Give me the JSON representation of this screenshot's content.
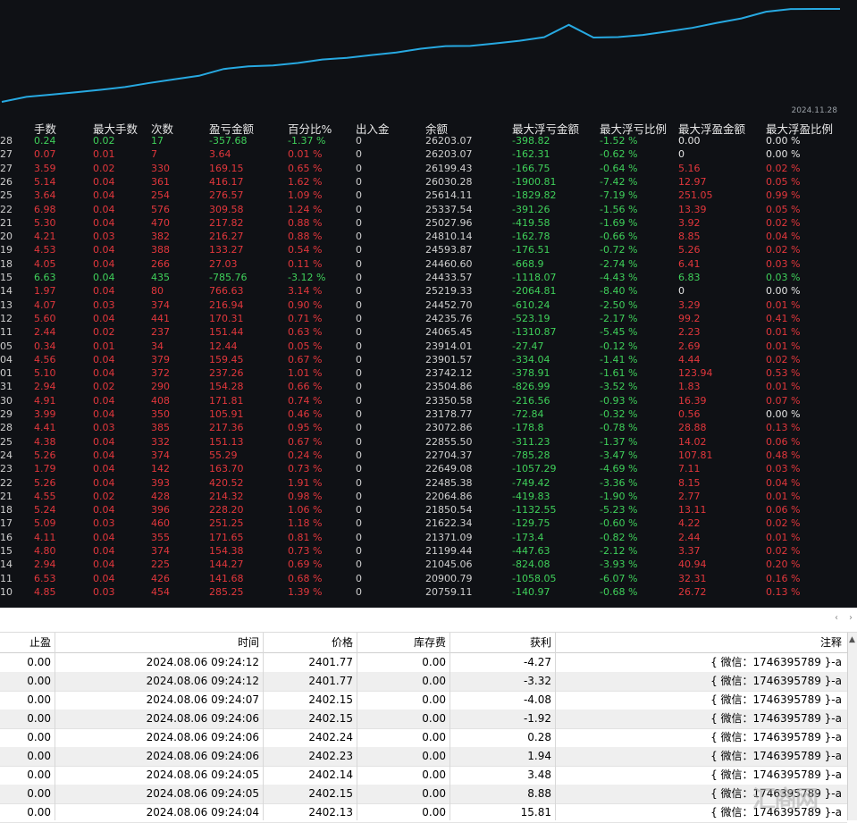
{
  "chart": {
    "date_label": "2024.11.28",
    "line_color": "#27a9e1",
    "balance_curve": [
      20450,
      20760,
      20900,
      21045,
      21199,
      21371,
      21622,
      21850,
      22065,
      22485,
      22649,
      22705,
      22856,
      23073,
      23179,
      23351,
      23505,
      23742,
      23902,
      23914,
      24065,
      24236,
      24453,
      25219,
      24434,
      24461,
      24594,
      24810,
      25028,
      25338,
      25614,
      26030,
      26199,
      26203,
      26203
    ]
  },
  "stats": {
    "headers": [
      "手数",
      "最大手数",
      "次数",
      "盈亏金额",
      "百分比%",
      "出入金",
      "余额",
      "最大浮亏金额",
      "最大浮亏比例",
      "最大浮盈金额",
      "最大浮盈比例"
    ],
    "rows": [
      {
        "id": "28",
        "lots": "0.24",
        "max_lots": "0.02",
        "count": "17",
        "pnl": "-357.68",
        "pct": "-1.37 %",
        "dep": "0",
        "bal": "26203.07",
        "maxl": "-398.82",
        "maxlp": "-1.52 %",
        "maxp": "0.00",
        "maxpp": "0.00 %",
        "tone": "green"
      },
      {
        "id": "27",
        "lots": "0.07",
        "max_lots": "0.01",
        "count": "7",
        "pnl": "3.64",
        "pct": "0.01 %",
        "dep": "0",
        "bal": "26203.07",
        "maxl": "-162.31",
        "maxlp": "-0.62 %",
        "maxp": "0",
        "maxpp": "0.00 %",
        "tone": "red"
      },
      {
        "id": "27",
        "lots": "3.59",
        "max_lots": "0.02",
        "count": "330",
        "pnl": "169.15",
        "pct": "0.65 %",
        "dep": "0",
        "bal": "26199.43",
        "maxl": "-166.75",
        "maxlp": "-0.64 %",
        "maxp": "5.16",
        "maxpp": "0.02 %",
        "tone": "red"
      },
      {
        "id": "26",
        "lots": "5.14",
        "max_lots": "0.04",
        "count": "361",
        "pnl": "416.17",
        "pct": "1.62 %",
        "dep": "0",
        "bal": "26030.28",
        "maxl": "-1900.81",
        "maxlp": "-7.42 %",
        "maxp": "12.97",
        "maxpp": "0.05 %",
        "tone": "red"
      },
      {
        "id": "25",
        "lots": "3.64",
        "max_lots": "0.04",
        "count": "254",
        "pnl": "276.57",
        "pct": "1.09 %",
        "dep": "0",
        "bal": "25614.11",
        "maxl": "-1829.82",
        "maxlp": "-7.19 %",
        "maxp": "251.05",
        "maxpp": "0.99 %",
        "tone": "red"
      },
      {
        "id": "22",
        "lots": "6.98",
        "max_lots": "0.04",
        "count": "576",
        "pnl": "309.58",
        "pct": "1.24 %",
        "dep": "0",
        "bal": "25337.54",
        "maxl": "-391.26",
        "maxlp": "-1.56 %",
        "maxp": "13.39",
        "maxpp": "0.05 %",
        "tone": "red"
      },
      {
        "id": "21",
        "lots": "5.30",
        "max_lots": "0.04",
        "count": "470",
        "pnl": "217.82",
        "pct": "0.88 %",
        "dep": "0",
        "bal": "25027.96",
        "maxl": "-419.58",
        "maxlp": "-1.69 %",
        "maxp": "3.92",
        "maxpp": "0.02 %",
        "tone": "red"
      },
      {
        "id": "20",
        "lots": "4.21",
        "max_lots": "0.03",
        "count": "382",
        "pnl": "216.27",
        "pct": "0.88 %",
        "dep": "0",
        "bal": "24810.14",
        "maxl": "-162.78",
        "maxlp": "-0.66 %",
        "maxp": "8.85",
        "maxpp": "0.04 %",
        "tone": "red"
      },
      {
        "id": "19",
        "lots": "4.53",
        "max_lots": "0.04",
        "count": "388",
        "pnl": "133.27",
        "pct": "0.54 %",
        "dep": "0",
        "bal": "24593.87",
        "maxl": "-176.51",
        "maxlp": "-0.72 %",
        "maxp": "5.26",
        "maxpp": "0.02 %",
        "tone": "red"
      },
      {
        "id": "18",
        "lots": "4.05",
        "max_lots": "0.04",
        "count": "266",
        "pnl": "27.03",
        "pct": "0.11 %",
        "dep": "0",
        "bal": "24460.60",
        "maxl": "-668.9",
        "maxlp": "-2.74 %",
        "maxp": "6.41",
        "maxpp": "0.03 %",
        "tone": "red"
      },
      {
        "id": "15",
        "lots": "6.63",
        "max_lots": "0.04",
        "count": "435",
        "pnl": "-785.76",
        "pct": "-3.12 %",
        "dep": "0",
        "bal": "24433.57",
        "maxl": "-1118.07",
        "maxlp": "-4.43 %",
        "maxp": "6.83",
        "maxpp": "0.03 %",
        "tone": "green"
      },
      {
        "id": "14",
        "lots": "1.97",
        "max_lots": "0.04",
        "count": "80",
        "pnl": "766.63",
        "pct": "3.14 %",
        "dep": "0",
        "bal": "25219.33",
        "maxl": "-2064.81",
        "maxlp": "-8.40 %",
        "maxp": "0",
        "maxpp": "0.00 %",
        "tone": "red"
      },
      {
        "id": "13",
        "lots": "4.07",
        "max_lots": "0.03",
        "count": "374",
        "pnl": "216.94",
        "pct": "0.90 %",
        "dep": "0",
        "bal": "24452.70",
        "maxl": "-610.24",
        "maxlp": "-2.50 %",
        "maxp": "3.29",
        "maxpp": "0.01 %",
        "tone": "red"
      },
      {
        "id": "12",
        "lots": "5.60",
        "max_lots": "0.04",
        "count": "441",
        "pnl": "170.31",
        "pct": "0.71 %",
        "dep": "0",
        "bal": "24235.76",
        "maxl": "-523.19",
        "maxlp": "-2.17 %",
        "maxp": "99.2",
        "maxpp": "0.41 %",
        "tone": "red"
      },
      {
        "id": "11",
        "lots": "2.44",
        "max_lots": "0.02",
        "count": "237",
        "pnl": "151.44",
        "pct": "0.63 %",
        "dep": "0",
        "bal": "24065.45",
        "maxl": "-1310.87",
        "maxlp": "-5.45 %",
        "maxp": "2.23",
        "maxpp": "0.01 %",
        "tone": "red"
      },
      {
        "id": "05",
        "lots": "0.34",
        "max_lots": "0.01",
        "count": "34",
        "pnl": "12.44",
        "pct": "0.05 %",
        "dep": "0",
        "bal": "23914.01",
        "maxl": "-27.47",
        "maxlp": "-0.12 %",
        "maxp": "2.69",
        "maxpp": "0.01 %",
        "tone": "red"
      },
      {
        "id": "04",
        "lots": "4.56",
        "max_lots": "0.04",
        "count": "379",
        "pnl": "159.45",
        "pct": "0.67 %",
        "dep": "0",
        "bal": "23901.57",
        "maxl": "-334.04",
        "maxlp": "-1.41 %",
        "maxp": "4.44",
        "maxpp": "0.02 %",
        "tone": "red"
      },
      {
        "id": "01",
        "lots": "5.10",
        "max_lots": "0.04",
        "count": "372",
        "pnl": "237.26",
        "pct": "1.01 %",
        "dep": "0",
        "bal": "23742.12",
        "maxl": "-378.91",
        "maxlp": "-1.61 %",
        "maxp": "123.94",
        "maxpp": "0.53 %",
        "tone": "red"
      },
      {
        "id": "31",
        "lots": "2.94",
        "max_lots": "0.02",
        "count": "290",
        "pnl": "154.28",
        "pct": "0.66 %",
        "dep": "0",
        "bal": "23504.86",
        "maxl": "-826.99",
        "maxlp": "-3.52 %",
        "maxp": "1.83",
        "maxpp": "0.01 %",
        "tone": "red"
      },
      {
        "id": "30",
        "lots": "4.91",
        "max_lots": "0.04",
        "count": "408",
        "pnl": "171.81",
        "pct": "0.74 %",
        "dep": "0",
        "bal": "23350.58",
        "maxl": "-216.56",
        "maxlp": "-0.93 %",
        "maxp": "16.39",
        "maxpp": "0.07 %",
        "tone": "red"
      },
      {
        "id": "29",
        "lots": "3.99",
        "max_lots": "0.04",
        "count": "350",
        "pnl": "105.91",
        "pct": "0.46 %",
        "dep": "0",
        "bal": "23178.77",
        "maxl": "-72.84",
        "maxlp": "-0.32 %",
        "maxp": "0.56",
        "maxpp": "0.00 %",
        "tone": "red"
      },
      {
        "id": "28",
        "lots": "4.41",
        "max_lots": "0.03",
        "count": "385",
        "pnl": "217.36",
        "pct": "0.95 %",
        "dep": "0",
        "bal": "23072.86",
        "maxl": "-178.8",
        "maxlp": "-0.78 %",
        "maxp": "28.88",
        "maxpp": "0.13 %",
        "tone": "red"
      },
      {
        "id": "25",
        "lots": "4.38",
        "max_lots": "0.04",
        "count": "332",
        "pnl": "151.13",
        "pct": "0.67 %",
        "dep": "0",
        "bal": "22855.50",
        "maxl": "-311.23",
        "maxlp": "-1.37 %",
        "maxp": "14.02",
        "maxpp": "0.06 %",
        "tone": "red"
      },
      {
        "id": "24",
        "lots": "5.26",
        "max_lots": "0.04",
        "count": "374",
        "pnl": "55.29",
        "pct": "0.24 %",
        "dep": "0",
        "bal": "22704.37",
        "maxl": "-785.28",
        "maxlp": "-3.47 %",
        "maxp": "107.81",
        "maxpp": "0.48 %",
        "tone": "red"
      },
      {
        "id": "23",
        "lots": "1.79",
        "max_lots": "0.04",
        "count": "142",
        "pnl": "163.70",
        "pct": "0.73 %",
        "dep": "0",
        "bal": "22649.08",
        "maxl": "-1057.29",
        "maxlp": "-4.69 %",
        "maxp": "7.11",
        "maxpp": "0.03 %",
        "tone": "red"
      },
      {
        "id": "22",
        "lots": "5.26",
        "max_lots": "0.04",
        "count": "393",
        "pnl": "420.52",
        "pct": "1.91 %",
        "dep": "0",
        "bal": "22485.38",
        "maxl": "-749.42",
        "maxlp": "-3.36 %",
        "maxp": "8.15",
        "maxpp": "0.04 %",
        "tone": "red"
      },
      {
        "id": "21",
        "lots": "4.55",
        "max_lots": "0.02",
        "count": "428",
        "pnl": "214.32",
        "pct": "0.98 %",
        "dep": "0",
        "bal": "22064.86",
        "maxl": "-419.83",
        "maxlp": "-1.90 %",
        "maxp": "2.77",
        "maxpp": "0.01 %",
        "tone": "red"
      },
      {
        "id": "18",
        "lots": "5.24",
        "max_lots": "0.04",
        "count": "396",
        "pnl": "228.20",
        "pct": "1.06 %",
        "dep": "0",
        "bal": "21850.54",
        "maxl": "-1132.55",
        "maxlp": "-5.23 %",
        "maxp": "13.11",
        "maxpp": "0.06 %",
        "tone": "red"
      },
      {
        "id": "17",
        "lots": "5.09",
        "max_lots": "0.03",
        "count": "460",
        "pnl": "251.25",
        "pct": "1.18 %",
        "dep": "0",
        "bal": "21622.34",
        "maxl": "-129.75",
        "maxlp": "-0.60 %",
        "maxp": "4.22",
        "maxpp": "0.02 %",
        "tone": "red"
      },
      {
        "id": "16",
        "lots": "4.11",
        "max_lots": "0.04",
        "count": "355",
        "pnl": "171.65",
        "pct": "0.81 %",
        "dep": "0",
        "bal": "21371.09",
        "maxl": "-173.4",
        "maxlp": "-0.82 %",
        "maxp": "2.44",
        "maxpp": "0.01 %",
        "tone": "red"
      },
      {
        "id": "15",
        "lots": "4.80",
        "max_lots": "0.04",
        "count": "374",
        "pnl": "154.38",
        "pct": "0.73 %",
        "dep": "0",
        "bal": "21199.44",
        "maxl": "-447.63",
        "maxlp": "-2.12 %",
        "maxp": "3.37",
        "maxpp": "0.02 %",
        "tone": "red"
      },
      {
        "id": "14",
        "lots": "2.94",
        "max_lots": "0.04",
        "count": "225",
        "pnl": "144.27",
        "pct": "0.69 %",
        "dep": "0",
        "bal": "21045.06",
        "maxl": "-824.08",
        "maxlp": "-3.93 %",
        "maxp": "40.94",
        "maxpp": "0.20 %",
        "tone": "red"
      },
      {
        "id": "11",
        "lots": "6.53",
        "max_lots": "0.04",
        "count": "426",
        "pnl": "141.68",
        "pct": "0.68 %",
        "dep": "0",
        "bal": "20900.79",
        "maxl": "-1058.05",
        "maxlp": "-6.07 %",
        "maxp": "32.31",
        "maxpp": "0.16 %",
        "tone": "red"
      },
      {
        "id": "10",
        "lots": "4.85",
        "max_lots": "0.03",
        "count": "454",
        "pnl": "285.25",
        "pct": "1.39 %",
        "dep": "0",
        "bal": "20759.11",
        "maxl": "-140.97",
        "maxlp": "-0.68 %",
        "maxp": "26.72",
        "maxpp": "0.13 %",
        "tone": "red"
      }
    ]
  },
  "scroll": {
    "left_arrow": "‹",
    "right_arrow": "›",
    "up_arrow": "▲"
  },
  "table": {
    "headers": [
      "止盈",
      "时间",
      "价格",
      "库存费",
      "获利",
      "注释"
    ],
    "rows": [
      {
        "tp": "0.00",
        "time": "2024.08.06 09:24:12",
        "price": "2401.77",
        "swap": "0.00",
        "profit": "-4.27",
        "note": "{ 微信：1746395789 }-a"
      },
      {
        "tp": "0.00",
        "time": "2024.08.06 09:24:12",
        "price": "2401.77",
        "swap": "0.00",
        "profit": "-3.32",
        "note": "{ 微信：1746395789 }-a"
      },
      {
        "tp": "0.00",
        "time": "2024.08.06 09:24:07",
        "price": "2402.15",
        "swap": "0.00",
        "profit": "-4.08",
        "note": "{ 微信：1746395789 }-a"
      },
      {
        "tp": "0.00",
        "time": "2024.08.06 09:24:06",
        "price": "2402.15",
        "swap": "0.00",
        "profit": "-1.92",
        "note": "{ 微信：1746395789 }-a"
      },
      {
        "tp": "0.00",
        "time": "2024.08.06 09:24:06",
        "price": "2402.24",
        "swap": "0.00",
        "profit": "0.28",
        "note": "{ 微信：1746395789 }-a"
      },
      {
        "tp": "0.00",
        "time": "2024.08.06 09:24:06",
        "price": "2402.23",
        "swap": "0.00",
        "profit": "1.94",
        "note": "{ 微信：1746395789 }-a"
      },
      {
        "tp": "0.00",
        "time": "2024.08.06 09:24:05",
        "price": "2402.14",
        "swap": "0.00",
        "profit": "3.48",
        "note": "{ 微信：1746395789 }-a"
      },
      {
        "tp": "0.00",
        "time": "2024.08.06 09:24:05",
        "price": "2402.15",
        "swap": "0.00",
        "profit": "8.88",
        "note": "{ 微信：1746395789 }-a"
      },
      {
        "tp": "0.00",
        "time": "2024.08.06 09:24:04",
        "price": "2402.13",
        "swap": "0.00",
        "profit": "15.81",
        "note": "{ 微信：1746395789 }-a"
      }
    ]
  },
  "watermark": "汇商网"
}
